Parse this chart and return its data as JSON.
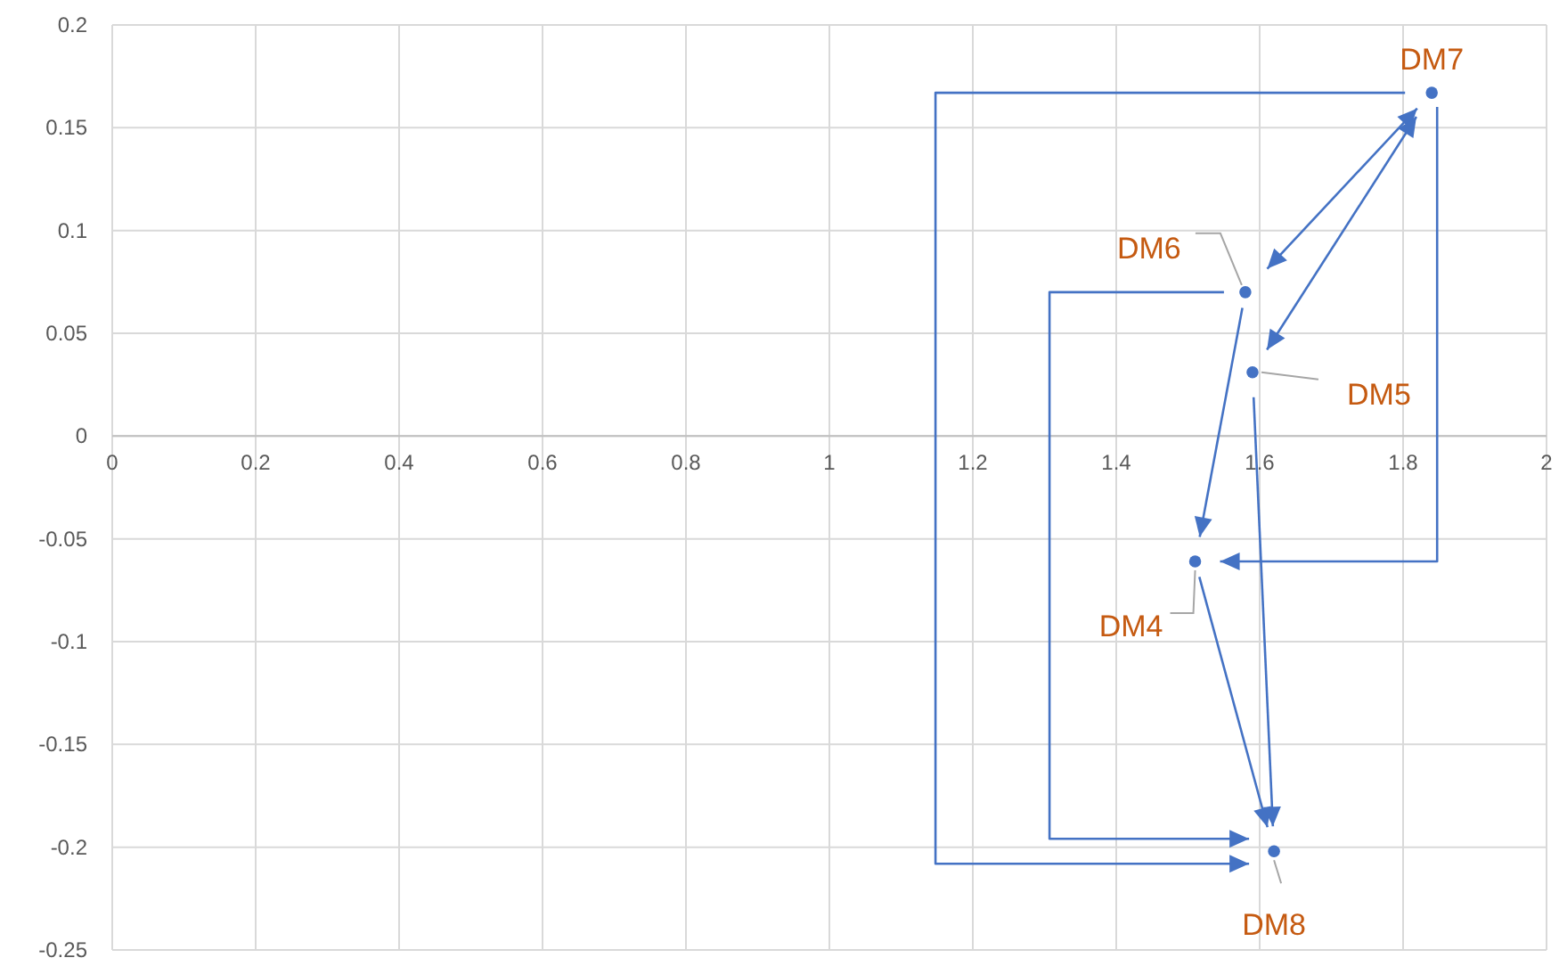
{
  "chart_data": {
    "type": "scatter",
    "x": [
      1.51,
      1.59,
      1.58,
      1.84,
      1.62
    ],
    "values": [
      -0.061,
      0.031,
      0.07,
      0.167,
      -0.202
    ],
    "color": "#4472c4",
    "marker": "circle",
    "xlim": [
      0,
      2
    ],
    "xticks": [
      0,
      0.2,
      0.4,
      0.6,
      0.8,
      1,
      1.2,
      1.4,
      1.6,
      1.8,
      2
    ],
    "ylim": [
      -0.25,
      0.2
    ],
    "yticks": [
      -0.25,
      -0.2,
      -0.15,
      -0.1,
      -0.05,
      0,
      0.05,
      0.1,
      0.15,
      0.2
    ],
    "grid": true,
    "annotations": [
      {
        "text": "DM4",
        "x": 1.51,
        "y": -0.061
      },
      {
        "text": "DM5",
        "x": 1.59,
        "y": 0.031
      },
      {
        "text": "DM6",
        "x": 1.58,
        "y": 0.07
      },
      {
        "text": "DM7",
        "x": 1.84,
        "y": 0.167
      },
      {
        "text": "DM8",
        "x": 1.62,
        "y": -0.202
      }
    ]
  }
}
